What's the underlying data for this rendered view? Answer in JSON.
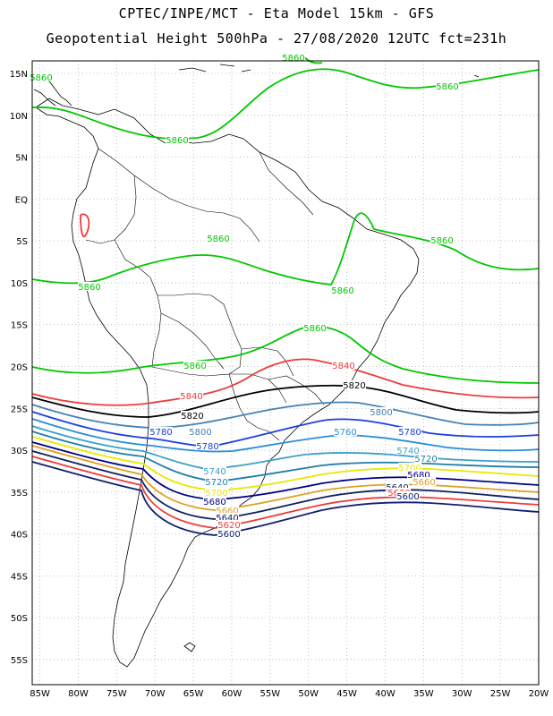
{
  "title": {
    "line1": "CPTEC/INPE/MCT -  Eta Model 15km - GFS",
    "line2": "Geopotential Height 500hPa - 27/08/2020 12UTC fct=231h"
  },
  "axes": {
    "lat_labels": [
      "15N",
      "10N",
      "5N",
      "EQ",
      "5S",
      "10S",
      "15S",
      "20S",
      "25S",
      "30S",
      "35S",
      "40S",
      "45S",
      "50S",
      "55S"
    ],
    "lat_values": [
      15,
      10,
      5,
      0,
      -5,
      -10,
      -15,
      -20,
      -25,
      -30,
      -35,
      -40,
      -45,
      -50,
      -55
    ],
    "lon_labels": [
      "85W",
      "80W",
      "75W",
      "70W",
      "65W",
      "60W",
      "55W",
      "50W",
      "45W",
      "40W",
      "35W",
      "30W",
      "25W",
      "20W"
    ],
    "lon_values": [
      -85,
      -80,
      -75,
      -70,
      -65,
      -60,
      -55,
      -50,
      -45,
      -40,
      -35,
      -30,
      -25,
      -20
    ],
    "lat_range": [
      -58,
      16.5
    ],
    "lon_range": [
      -86,
      -20
    ]
  },
  "contours": [
    {
      "level": "5860",
      "color": "#00c800",
      "labels": [
        "5860",
        "5860",
        "5860",
        "5860",
        "5860",
        "5860",
        "5860",
        "5860",
        "5860",
        "5860"
      ]
    },
    {
      "level": "5840",
      "color": "#ee3b3b",
      "labels": [
        "5840",
        "5840"
      ]
    },
    {
      "level": "5820",
      "color": "#000000",
      "labels": [
        "5820",
        "5820"
      ]
    },
    {
      "level": "5800",
      "color": "#4682b4",
      "labels": [
        "5800",
        "5800"
      ]
    },
    {
      "level": "5780",
      "color": "#1c3fe0",
      "labels": [
        "5780",
        "5780",
        "5780"
      ]
    },
    {
      "level": "5760",
      "color": "#2a8fd8",
      "labels": [
        "5760",
        "5760"
      ]
    },
    {
      "level": "5740",
      "color": "#3ca0c8",
      "labels": [
        "5740",
        "5740"
      ]
    },
    {
      "level": "5720",
      "color": "#1e7fa8",
      "labels": [
        "5720",
        "5720"
      ]
    },
    {
      "level": "5700",
      "color": "#e8e800",
      "labels": [
        "5700",
        "5700"
      ]
    },
    {
      "level": "5680",
      "color": "#000080",
      "labels": [
        "5680",
        "5680"
      ]
    },
    {
      "level": "5660",
      "color": "#e0a020",
      "labels": [
        "5660",
        "5660"
      ]
    },
    {
      "level": "5640",
      "color": "#102060",
      "labels": [
        "5640",
        "5640"
      ]
    },
    {
      "level": "5620",
      "color": "#ee3b3b",
      "labels": [
        "5620",
        "5620"
      ]
    },
    {
      "level": "5600",
      "color": "#102070",
      "labels": [
        "5600",
        "5600"
      ]
    }
  ],
  "colors": {
    "coast": "#000000",
    "grid": "#b0b0b0",
    "frame": "#000000"
  }
}
